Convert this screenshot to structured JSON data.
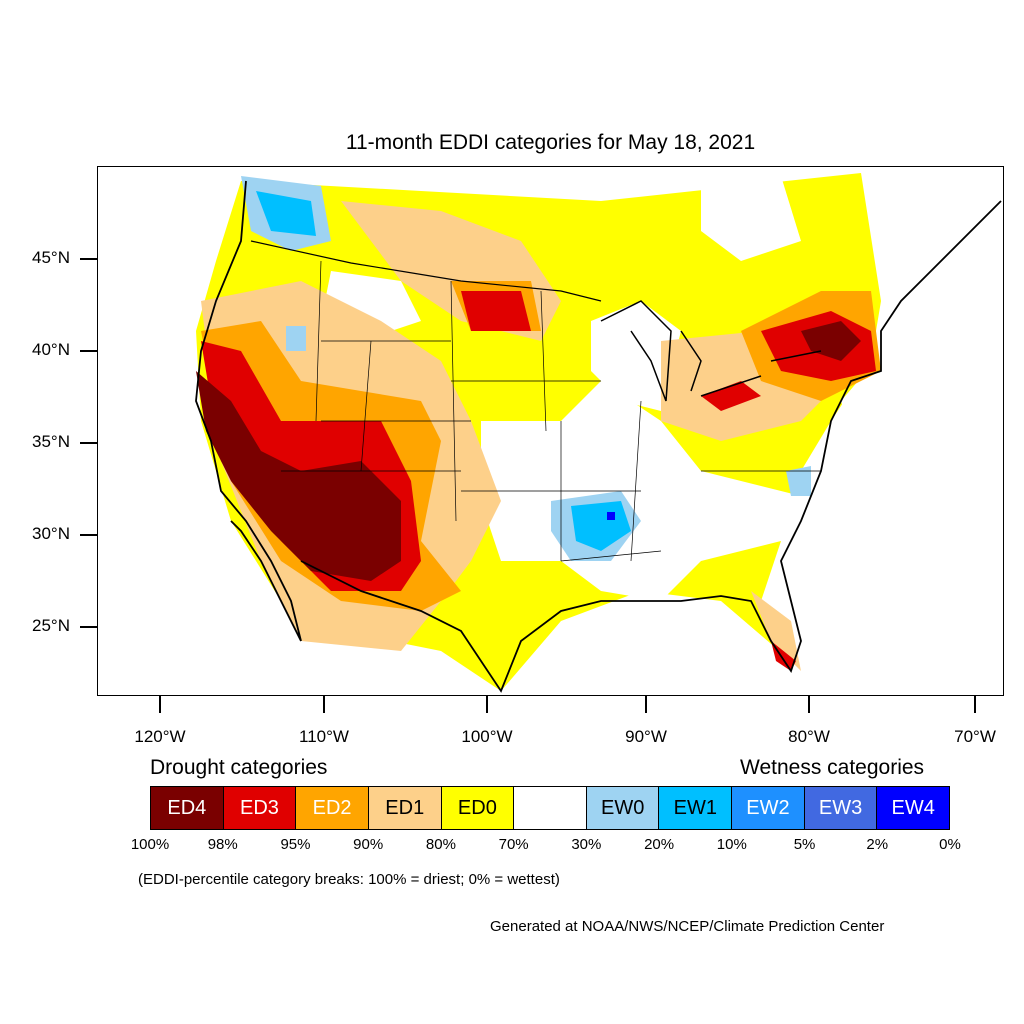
{
  "title": "11-month EDDI categories for May 18, 2021",
  "map": {
    "lat_labels": [
      "45°N",
      "40°N",
      "35°N",
      "30°N",
      "25°N"
    ],
    "lon_labels": [
      "120°W",
      "110°W",
      "100°W",
      "90°W",
      "80°W",
      "70°W"
    ]
  },
  "legend": {
    "drought_heading": "Drought categories",
    "wetness_heading": "Wetness categories",
    "categories": [
      {
        "label": "ED4",
        "color": "#7a0000",
        "text_color": "#ffffff"
      },
      {
        "label": "ED3",
        "color": "#e00000",
        "text_color": "#ffffff"
      },
      {
        "label": "ED2",
        "color": "#ffa500",
        "text_color": "#ffffff"
      },
      {
        "label": "ED1",
        "color": "#fdd08a",
        "text_color": "#000000"
      },
      {
        "label": "ED0",
        "color": "#ffff00",
        "text_color": "#000000"
      },
      {
        "label": "",
        "color": "#ffffff",
        "text_color": "#000000"
      },
      {
        "label": "EW0",
        "color": "#9ed3f2",
        "text_color": "#000000"
      },
      {
        "label": "EW1",
        "color": "#00bfff",
        "text_color": "#000000"
      },
      {
        "label": "EW2",
        "color": "#1e90ff",
        "text_color": "#ffffff"
      },
      {
        "label": "EW3",
        "color": "#4169e1",
        "text_color": "#ffffff"
      },
      {
        "label": "EW4",
        "color": "#0000ff",
        "text_color": "#ffffff"
      }
    ],
    "percent_breaks": [
      "100%",
      "98%",
      "95%",
      "90%",
      "80%",
      "70%",
      "30%",
      "20%",
      "10%",
      "5%",
      "2%",
      "0%"
    ]
  },
  "note": "(EDDI-percentile category breaks: 100% = driest; 0% = wettest)",
  "credit": "Generated at NOAA/NWS/NCEP/Climate Prediction Center"
}
